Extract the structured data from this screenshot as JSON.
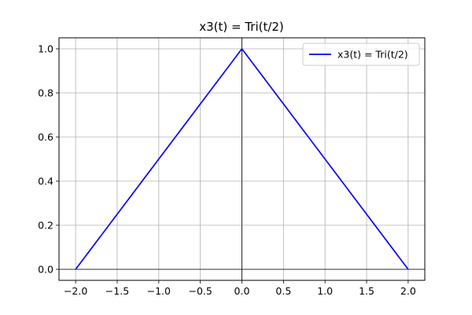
{
  "chart_data": {
    "type": "line",
    "title": "x3(t) = Tri(t/2)",
    "xlabel": "",
    "ylabel": "",
    "xlim": [
      -2.2,
      2.2
    ],
    "ylim": [
      -0.05,
      1.05
    ],
    "xticks": [
      -2.0,
      -1.5,
      -1.0,
      -0.5,
      0.0,
      0.5,
      1.0,
      1.5,
      2.0
    ],
    "xtick_labels": [
      "−2.0",
      "−1.5",
      "−1.0",
      "−0.5",
      "0.0",
      "0.5",
      "1.0",
      "1.5",
      "2.0"
    ],
    "yticks": [
      0.0,
      0.2,
      0.4,
      0.6,
      0.8,
      1.0
    ],
    "ytick_labels": [
      "0.0",
      "0.2",
      "0.4",
      "0.6",
      "0.8",
      "1.0"
    ],
    "grid": true,
    "axis_lines": {
      "x": 0,
      "y": 0
    },
    "legend_position": "top-right",
    "series": [
      {
        "name": "x3(t) = Tri(t/2)",
        "color": "#0000ff",
        "x": [
          -2.0,
          0.0,
          2.0
        ],
        "y": [
          0.0,
          1.0,
          0.0
        ]
      }
    ]
  }
}
